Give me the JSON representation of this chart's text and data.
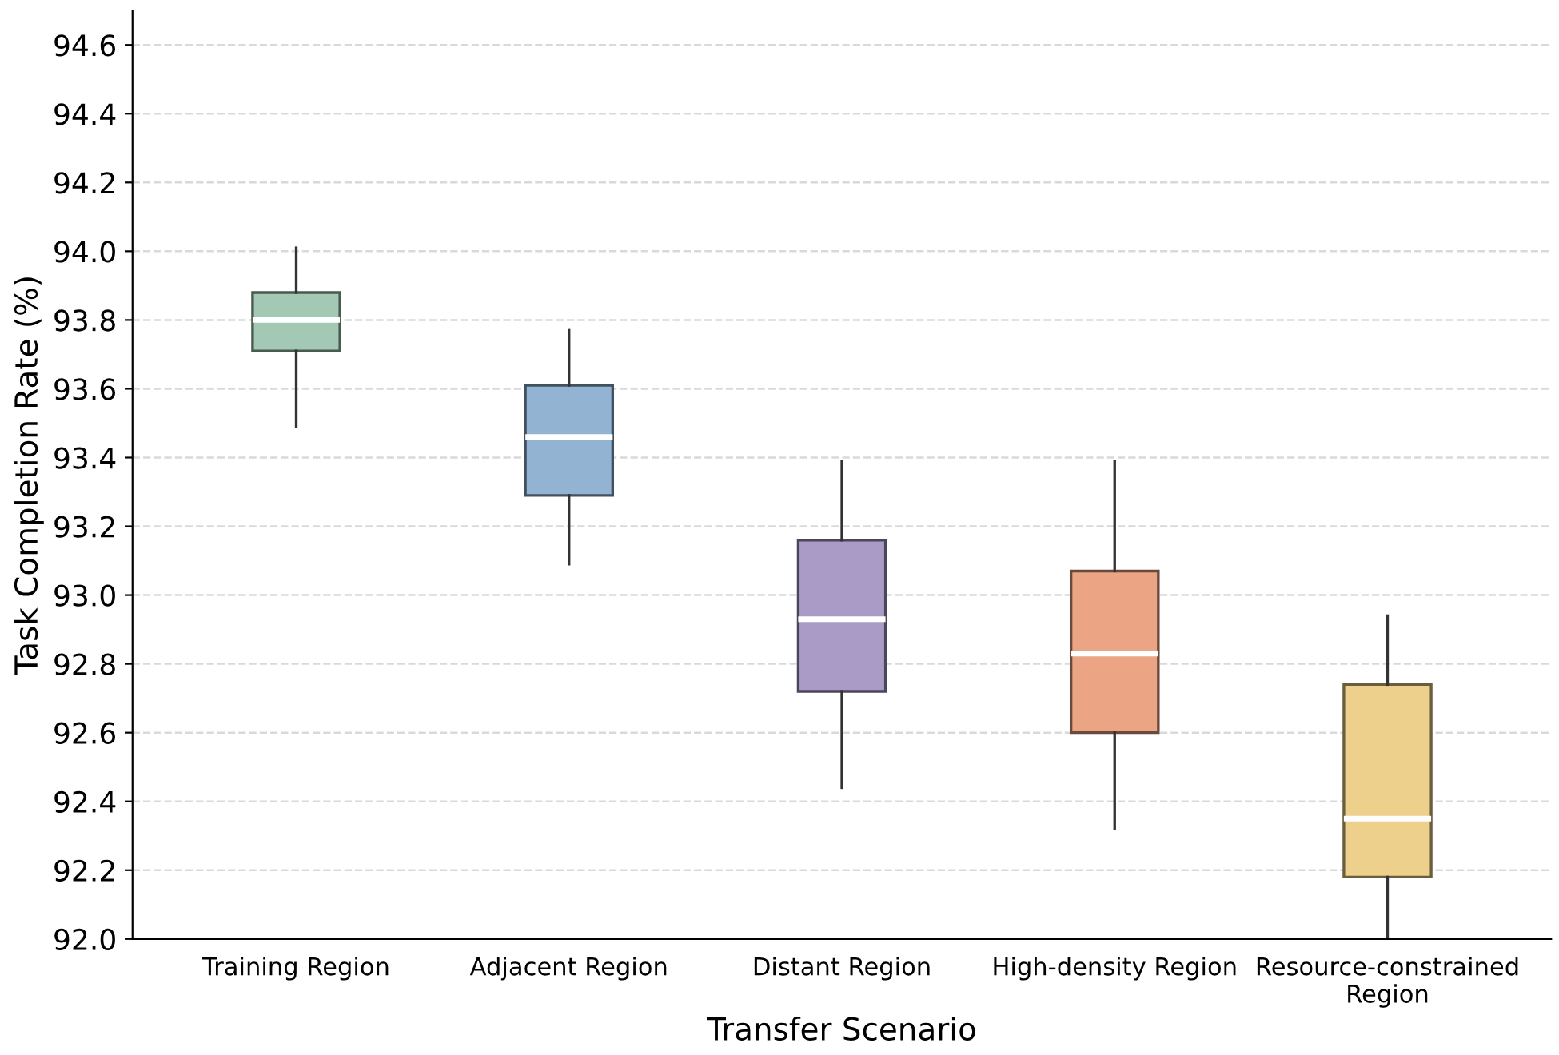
{
  "chart_data": {
    "type": "box",
    "xlabel": "Transfer Scenario",
    "ylabel": "Task Completion Rate (%)",
    "categories": [
      "Training Region",
      "Adjacent Region",
      "Distant Region",
      "High-density Region",
      "Resource-constrained\nRegion"
    ],
    "colors": [
      "#a3c9b4",
      "#93b3d3",
      "#a99bc6",
      "#eba585",
      "#ecd08c"
    ],
    "boxes": [
      {
        "low": 93.49,
        "q1": 93.71,
        "median": 93.8,
        "q3": 93.88,
        "high": 94.01
      },
      {
        "low": 93.09,
        "q1": 93.29,
        "median": 93.46,
        "q3": 93.61,
        "high": 93.77
      },
      {
        "low": 92.44,
        "q1": 92.72,
        "median": 92.93,
        "q3": 93.16,
        "high": 93.39
      },
      {
        "low": 92.32,
        "q1": 92.6,
        "median": 92.83,
        "q3": 93.07,
        "high": 93.39
      },
      {
        "low": 92.0,
        "q1": 92.18,
        "median": 92.35,
        "q3": 92.74,
        "high": 92.94
      }
    ],
    "ylim": [
      92.0,
      94.7
    ],
    "yticks": [
      {
        "value": 92,
        "label": "92.0"
      },
      92.2,
      92.4,
      92.6,
      92.8,
      {
        "value": 93,
        "label": "93.0"
      },
      93.2,
      93.4,
      93.6,
      93.8,
      {
        "value": 94,
        "label": "94.0"
      },
      94.2,
      94.4,
      94.6
    ],
    "grid": "y",
    "line_style": "dashed"
  }
}
